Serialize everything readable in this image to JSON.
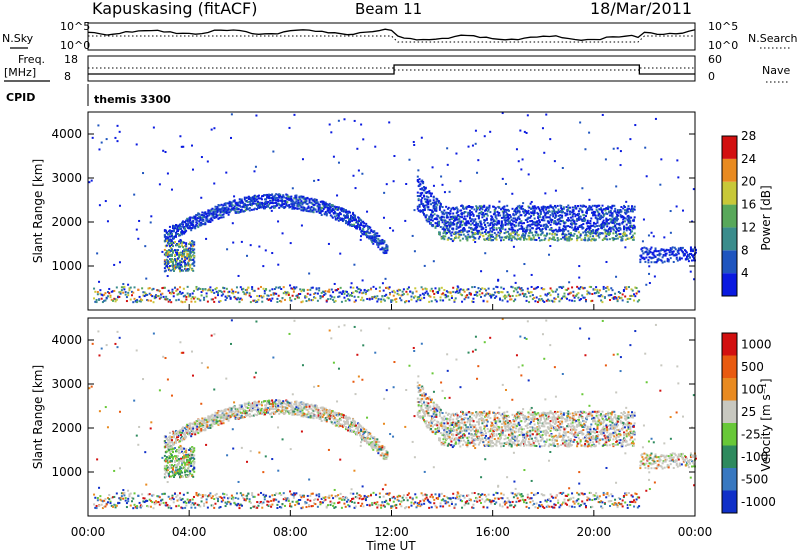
{
  "header": {
    "station": "Kapuskasing (fitACF)",
    "beam": "Beam 11",
    "date": "18/Mar/2011"
  },
  "top_panels": {
    "nsky_label": "N.Sky",
    "nsky_ticks": [
      "10^5",
      "10^0"
    ],
    "nsearch_label": "N.Search",
    "freq_label_1": "Freq.",
    "freq_label_2": "[MHz]",
    "freq_ticks": [
      "18",
      "8"
    ],
    "nave_label": "Nave",
    "nave_ticks": [
      "60",
      "0"
    ],
    "cpid_label": "CPID",
    "cpid_value": "themis 3300"
  },
  "chart_data": [
    {
      "type": "heatmap",
      "panel": "power",
      "ylabel": "Slant Range [km]",
      "yticks": [
        1000,
        2000,
        3000,
        4000
      ],
      "ylim": [
        0,
        4500
      ],
      "colorbar_label": "Power [dB]",
      "colorbar_ticks": [
        "4",
        "8",
        "12",
        "16",
        "20",
        "24",
        "28"
      ],
      "colors": [
        "#0a1ae0",
        "#1f55bf",
        "#3a8c8c",
        "#58a85a",
        "#c8c838",
        "#e88a20",
        "#d21010"
      ],
      "bands": [
        {
          "name": "early arc",
          "t_start": 3.0,
          "t_end": 11.8,
          "range_start": 1700,
          "range_peak": 2500,
          "range_end": 1400,
          "dominant_power": 6
        },
        {
          "name": "dense spot",
          "t_start": 3.0,
          "t_end": 4.2,
          "range_low": 900,
          "range_high": 1500,
          "dominant_power": 18
        },
        {
          "name": "afternoon band",
          "t_start": 13.0,
          "t_end": 21.6,
          "range_low": 1600,
          "range_high": 2400,
          "dominant_power": 10
        },
        {
          "name": "late patch",
          "t_start": 21.8,
          "t_end": 24.0,
          "range_low": 1100,
          "range_high": 1400,
          "dominant_power": 6
        },
        {
          "name": "near-range clutter",
          "t_start": 0.0,
          "t_end": 21.8,
          "range_low": 200,
          "range_high": 500,
          "dominant_power": 14
        }
      ]
    },
    {
      "type": "heatmap",
      "panel": "velocity",
      "ylabel": "Slant Range [km]",
      "yticks": [
        1000,
        2000,
        3000,
        4000
      ],
      "ylim": [
        0,
        4500
      ],
      "colorbar_label": "Velocity [m s⁻¹]",
      "colorbar_ticks": [
        "1000",
        "500",
        "100",
        "25",
        "-25",
        "-100",
        "-500",
        "-1000"
      ],
      "colors": [
        "#1030c8",
        "#3878c0",
        "#2e8a5e",
        "#68c838",
        "#c8c8c0",
        "#e88a20",
        "#e85a10",
        "#d21010"
      ],
      "dominant_velocity": "-25 to 25",
      "xlabel": "Time UT",
      "xticks": [
        "00:00",
        "04:00",
        "08:00",
        "12:00",
        "16:00",
        "20:00",
        "00:00"
      ],
      "xlim_hours": [
        0,
        24
      ]
    }
  ]
}
